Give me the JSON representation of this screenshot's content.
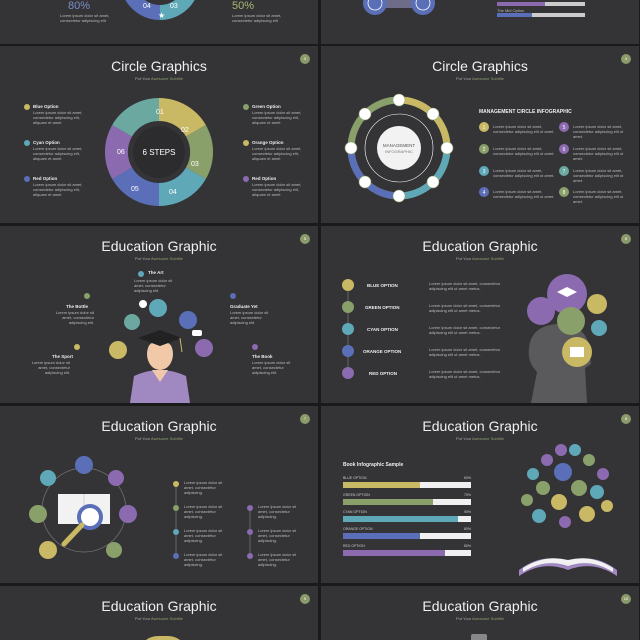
{
  "colors": {
    "yellow": "#c9b864",
    "green": "#8aa06a",
    "cyan": "#5fa8b8",
    "blue": "#5a6fb8",
    "purple": "#8c6ab0",
    "teal": "#6aa8a0"
  },
  "top_left": {
    "pct_a": "80%",
    "pct_b": "50%",
    "seg_04": "04",
    "seg_03": "03"
  },
  "subtitle": {
    "prefix": "Put Your",
    "accent": "Awesome Subtitle"
  },
  "s3": {
    "title": "Circle Graphics",
    "page": "3",
    "center": "6 STEPS",
    "segments": [
      "01",
      "02",
      "03",
      "04",
      "05",
      "06"
    ],
    "options_left": [
      "Blue Option",
      "Cyan Option",
      "Red Option"
    ],
    "options_right": [
      "Green Option",
      "Orange Option",
      "Red Option"
    ],
    "body": "Lorem ipsum dolor sit amet, consectetur adipiscing elit, aliquam et amet"
  },
  "s4": {
    "title": "Circle Graphics",
    "page": "4",
    "center_a": "MANAGEMENT",
    "center_b": "INFOGRAPHIC",
    "heading": "MANAGEMENT CIRCLE INFOGRAPHIC",
    "nums": [
      "1",
      "2",
      "3",
      "4",
      "5",
      "6",
      "7",
      "8"
    ],
    "body": "Lorem ipsum dolor sit amet, consectetur adipiscing elit ut amet."
  },
  "s5": {
    "title": "Education Graphic",
    "page": "5",
    "labels": [
      "The Art",
      "The Bottle",
      "Graduate Yet",
      "The Sport",
      "The Book"
    ],
    "nums": [
      "1",
      "2",
      "3",
      "4",
      "5"
    ],
    "body": "Lorem ipsum dolor sit amet, consectetur adipiscing elit."
  },
  "s6": {
    "title": "Education Graphic",
    "page": "6",
    "options": [
      "BLUE OPTION",
      "GREEN OPTION",
      "CYAN OPTION",
      "ORANGE OPTION",
      "RED OPTION"
    ],
    "nums": [
      "1",
      "2",
      "3",
      "4",
      "5"
    ],
    "body": "Lorem ipsum dolor sit amet, consectetur adipiscing elit ut amet metus."
  },
  "s7": {
    "title": "Education Graphic",
    "page": "7",
    "body": "Lorem ipsum dolor sit amet, consectetur adipiscing."
  },
  "s8": {
    "title": "Education Graphic",
    "page": "8",
    "chart_heading": "Book Infographic Sample",
    "bars": [
      {
        "label": "BLUE OPTION",
        "pct": "60%",
        "value": 0.6
      },
      {
        "label": "GREEN OPTION",
        "pct": "70%",
        "value": 0.7
      },
      {
        "label": "CYAN OPTION",
        "pct": "90%",
        "value": 0.9
      },
      {
        "label": "ORANGE OPTION",
        "pct": "60%",
        "value": 0.6
      },
      {
        "label": "RED OPTION",
        "pct": "80%",
        "value": 0.8
      }
    ]
  },
  "s9": {
    "title": "Education Graphic",
    "page": "9"
  },
  "s10": {
    "title": "Education Graphic",
    "page": "10"
  }
}
